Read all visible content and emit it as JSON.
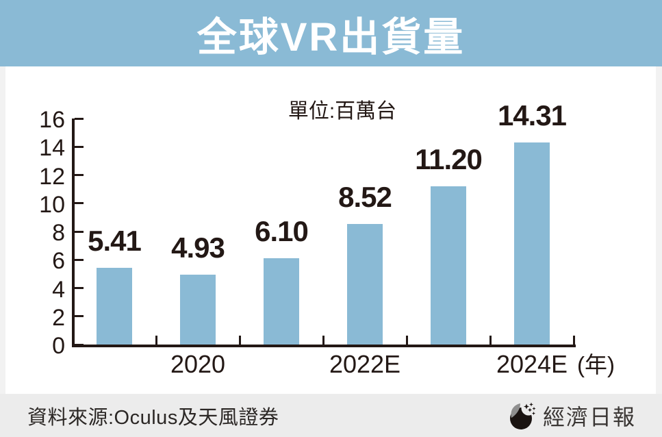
{
  "header": {
    "title": "全球VR出貨量"
  },
  "chart_data": {
    "type": "bar",
    "title": "全球VR出貨量",
    "unit_label": "單位:百萬台",
    "values": [
      5.41,
      4.93,
      6.1,
      8.52,
      11.2,
      14.31
    ],
    "value_labels": [
      "5.41",
      "4.93",
      "6.10",
      "8.52",
      "11.20",
      "14.31"
    ],
    "x_axis_labels": [
      {
        "text": "2020",
        "bar_index": 1
      },
      {
        "text": "2022E",
        "bar_index": 3
      },
      {
        "text": "2024E",
        "bar_index": 5
      }
    ],
    "x_axis_suffix": "(年)",
    "y_axis": {
      "min": 0,
      "max": 16,
      "step": 2
    },
    "ylim": [
      0,
      16
    ],
    "grid": false,
    "legend": false,
    "bar_color": "#8ABAD5",
    "axis_color": "#231815",
    "label_color": "#231815"
  },
  "footer": {
    "source": "資料來源:Oculus及天風證券",
    "logo_text": "經濟日報"
  }
}
